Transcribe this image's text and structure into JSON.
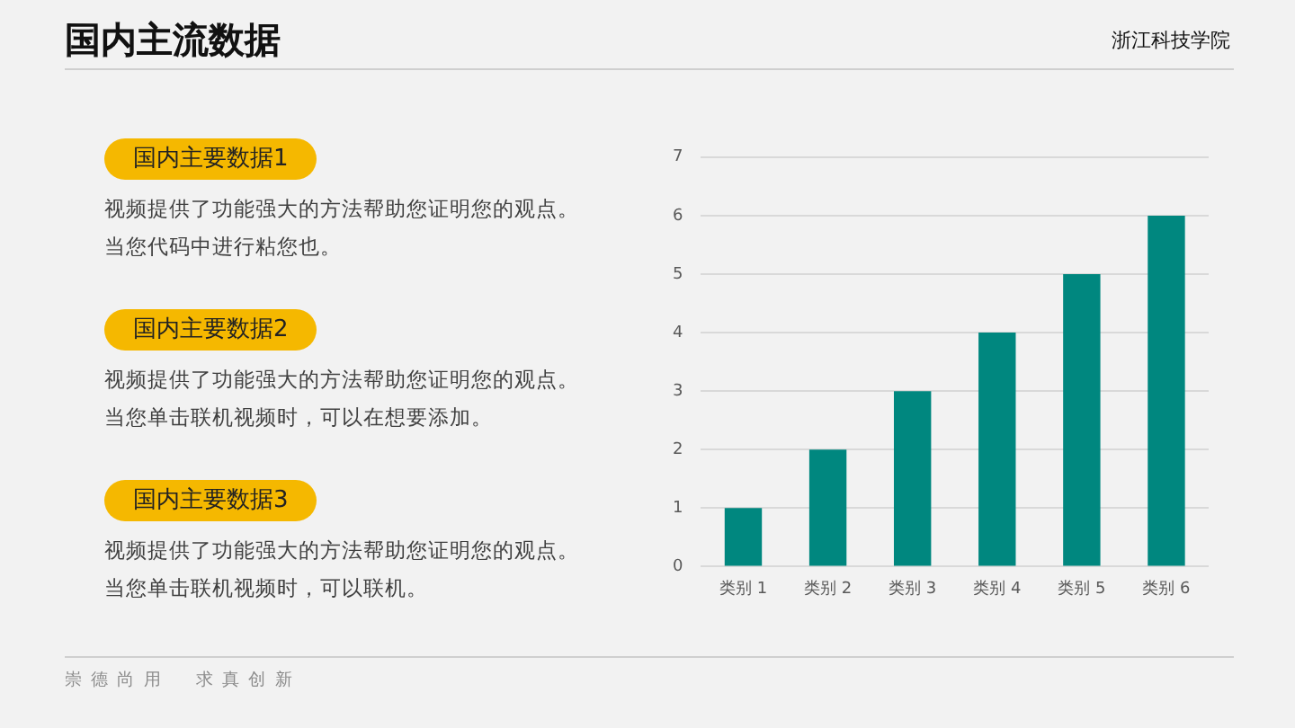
{
  "chart_data": {
    "type": "bar",
    "title": "国内主流数据",
    "categories": [
      "类别 1",
      "类别 2",
      "类别 3",
      "类别 4",
      "类别 5",
      "类别 6"
    ],
    "values": [
      1,
      2,
      3,
      4,
      5,
      6
    ],
    "color": "#00877f",
    "ylim": [
      0,
      7
    ],
    "yticks": [
      0,
      1,
      2,
      3,
      4,
      5,
      6,
      7
    ],
    "grid": "y",
    "legend": false,
    "annotations": [
      "浙江科技学院",
      "国内主要数据1",
      "视频提供了功能强大的方法帮助您证明您的观点。当您代码中进行粘您也。",
      "国内主要数据2",
      "视频提供了功能强大的方法帮助您证明您的观点。当您单击联机视频时，可以在想要添加。",
      "国内主要数据3",
      "视频提供了功能强大的方法帮助您证明您的观点。当您单击联机视频时，可以联机。",
      "崇德尚用　求真创新"
    ]
  }
}
